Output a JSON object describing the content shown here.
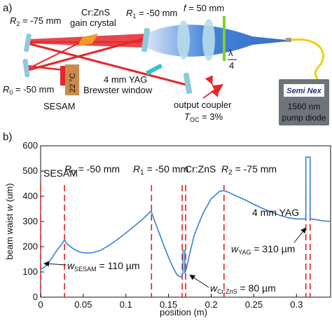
{
  "panel_a": {
    "panel_label": "a)",
    "mirror_r2": "R",
    "mirror_r2_sub": "2",
    "mirror_r2_val": " = -75 mm",
    "crystal_line1": "Cr:ZnS",
    "crystal_line2": "gain crystal",
    "mirror_r1": "R",
    "mirror_r1_sub": "1",
    "mirror_r1_val": " = -50 mm",
    "lens_f": "f",
    "lens_f_val": " = 50 mm",
    "waveplate_num": "λ",
    "waveplate_den": "4",
    "temp": "22 °C",
    "sesam": "SESAM",
    "mirror_r0": "R",
    "mirror_r0_sub": "0",
    "mirror_r0_val": " = -50 mm",
    "yag_line1": "4 mm YAG",
    "yag_line2": "Brewster window",
    "oc_line1": "output coupler",
    "oc_T": "T",
    "oc_T_sub": "OC",
    "oc_T_val": " = 3%",
    "pump_brand": "Semi Nex",
    "pump_line1": "1560 nm",
    "pump_line2": "pump diode",
    "colors": {
      "beam": "#e3262b",
      "pump_beam": "#2f74d6",
      "mirror": "#8ec9df",
      "crystal": "#f29a23",
      "yag": "#2fc6c0",
      "sesam": "#c98a4a",
      "green": "#7ed321",
      "fiber": "#f2cc1a"
    }
  },
  "panel_b": {
    "panel_label": "b)",
    "ylabel_prefix": "beam waist ",
    "ylabel_var": "w",
    "ylabel_unit": " (um)",
    "xlabel": "position (m)",
    "annotations": {
      "sesam": "SESAM",
      "r0": "R",
      "r0_sub": "0",
      "r0_val": " = -50 mm",
      "r1": "R",
      "r1_sub": "1",
      "r1_val": " = -50 mm",
      "crzns": "Cr:ZnS",
      "r2": "R",
      "r2_sub": "2",
      "r2_val": " = -75 mm",
      "yag": "4 mm YAG",
      "w_sesam": "w",
      "w_sesam_sub": "SESAM",
      "w_sesam_val": " = 110 µm",
      "w_crzns": "w",
      "w_crzns_sub": "Cr:ZnS",
      "w_crzns_val": " = 80 µm",
      "w_yag": "w",
      "w_yag_sub": "YAG",
      "w_yag_val": " = 310 µm"
    }
  },
  "chart_data": {
    "type": "line",
    "title": "",
    "xlabel": "position (m)",
    "ylabel": "beam waist w (um)",
    "xlim": [
      0,
      0.34
    ],
    "ylim": [
      0,
      600
    ],
    "xticks": [
      0,
      0.05,
      0.1,
      0.15,
      0.2,
      0.25,
      0.3
    ],
    "xtick_labels": [
      "0",
      "0.05",
      "0.1",
      "0.15",
      "0.2",
      "0.25",
      "0.3"
    ],
    "yticks": [
      0,
      100,
      200,
      300,
      400,
      500,
      600
    ],
    "ytick_labels": [
      "0",
      "100",
      "200",
      "300",
      "400",
      "500",
      "600"
    ],
    "grid": false,
    "series": [
      {
        "color": "#3c7fd0",
        "x": [
          0,
          0.005,
          0.01,
          0.015,
          0.02,
          0.025,
          0.028,
          0.03,
          0.035,
          0.04,
          0.045,
          0.05,
          0.055,
          0.06,
          0.07,
          0.08,
          0.09,
          0.1,
          0.11,
          0.12,
          0.129,
          0.13,
          0.135,
          0.14,
          0.145,
          0.15,
          0.155,
          0.16,
          0.164,
          0.166,
          0.167,
          0.167,
          0.169,
          0.169,
          0.171,
          0.175,
          0.18,
          0.19,
          0.2,
          0.21,
          0.215,
          0.22,
          0.23,
          0.24,
          0.25,
          0.26,
          0.27,
          0.28,
          0.29,
          0.3,
          0.31,
          0.311,
          0.311,
          0.316,
          0.316,
          0.318,
          0.325,
          0.33,
          0.34
        ],
        "y": [
          110,
          120,
          140,
          165,
          190,
          210,
          228,
          215,
          200,
          188,
          180,
          176,
          175,
          176,
          185,
          205,
          228,
          255,
          282,
          310,
          340,
          336,
          290,
          245,
          200,
          158,
          120,
          88,
          80,
          85,
          95,
          185,
          185,
          95,
          115,
          175,
          245,
          330,
          390,
          420,
          422,
          416,
          400,
          385,
          368,
          352,
          338,
          325,
          315,
          310,
          310,
          310,
          555,
          555,
          310,
          310,
          306,
          303,
          300
        ]
      }
    ],
    "markers": [
      {
        "label": "SESAM",
        "x": 0.0
      },
      {
        "label": "R0 = -50 mm",
        "x": 0.028
      },
      {
        "label": "R1 = -50 mm",
        "x": 0.13
      },
      {
        "label": "Cr:ZnS",
        "x": 0.166
      },
      {
        "label": "Cr:ZnS",
        "x": 0.17
      },
      {
        "label": "R2 = -75 mm",
        "x": 0.215
      },
      {
        "label": "4 mm YAG",
        "x": 0.311
      },
      {
        "label": "4 mm YAG",
        "x": 0.316
      }
    ],
    "marker_color": "#e02020"
  }
}
